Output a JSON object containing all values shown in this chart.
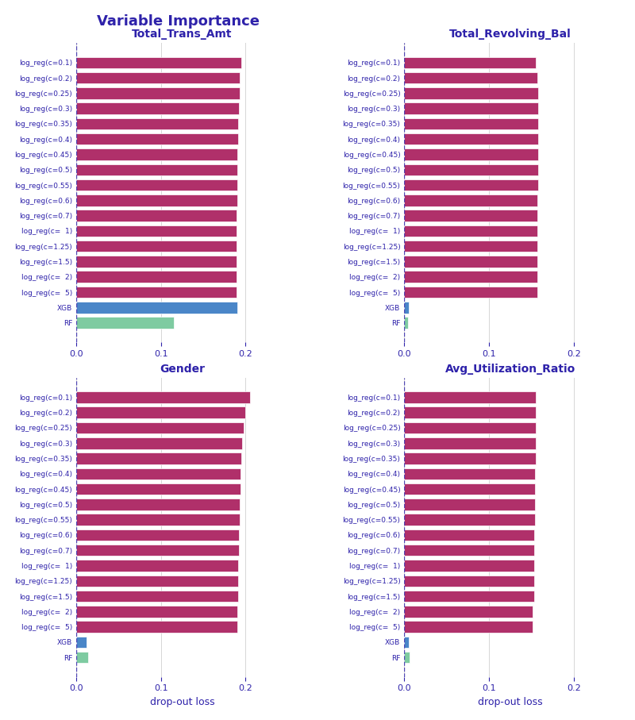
{
  "title": "Variable Importance",
  "subplot_titles": [
    "Total_Trans_Amt",
    "Total_Revolving_Bal",
    "Gender",
    "Avg_Utilization_Ratio"
  ],
  "ylabel_xlabel": "drop-out loss",
  "models": [
    "log_reg(c=0.1)",
    "log_reg(c=0.2)",
    "log_reg(c=0.25)",
    "log_reg(c=0.3)",
    "log_reg(c=0.35)",
    "log_reg(c=0.4)",
    "log_reg(c=0.45)",
    "log_reg(c=0.5)",
    "log_reg(c=0.55)",
    "log_reg(c=0.6)",
    "log_reg(c=0.7)",
    "log_reg(c=  1)",
    "log_reg(c=1.25)",
    "log_reg(c=1.5)",
    "log_reg(c=  2)",
    "log_reg(c=  5)",
    "XGB",
    "RF"
  ],
  "colors": {
    "log_reg": "#B0306A",
    "XGB": "#4A86C8",
    "RF": "#7ECBA1"
  },
  "data": {
    "Total_Trans_Amt": [
      0.195,
      0.193,
      0.193,
      0.192,
      0.191,
      0.191,
      0.19,
      0.19,
      0.19,
      0.19,
      0.189,
      0.189,
      0.189,
      0.189,
      0.189,
      0.189,
      0.19,
      0.115
    ],
    "Total_Revolving_Bal": [
      0.155,
      0.157,
      0.158,
      0.158,
      0.158,
      0.158,
      0.158,
      0.158,
      0.158,
      0.157,
      0.157,
      0.157,
      0.157,
      0.157,
      0.157,
      0.157,
      0.005,
      0.004
    ],
    "Gender": [
      0.205,
      0.2,
      0.198,
      0.196,
      0.195,
      0.194,
      0.194,
      0.193,
      0.193,
      0.192,
      0.192,
      0.191,
      0.191,
      0.191,
      0.19,
      0.19,
      0.012,
      0.014
    ],
    "Avg_Utilization_Ratio": [
      0.155,
      0.155,
      0.155,
      0.155,
      0.155,
      0.154,
      0.154,
      0.154,
      0.154,
      0.153,
      0.153,
      0.153,
      0.153,
      0.153,
      0.152,
      0.152,
      0.005,
      0.006
    ]
  },
  "xlim": [
    0,
    0.25
  ],
  "xticks": [
    0,
    0.1,
    0.2
  ],
  "background_color": "#FFFFFF",
  "grid_color": "#CCCCCC",
  "title_color": "#2E22AA",
  "label_color": "#2E22AA"
}
